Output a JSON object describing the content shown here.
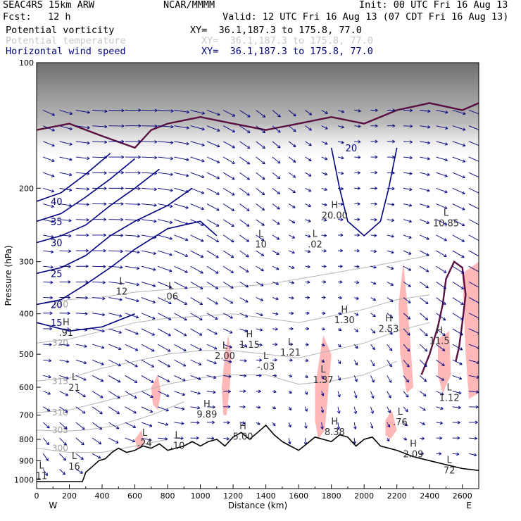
{
  "header": {
    "model": "SEAC4RS 15km ARW",
    "org": "NCAR/MMMM",
    "init": "Init: 00 UTC Fri 16 Aug 13",
    "fcst_label": "Fcst:",
    "fcst_value": "12 h",
    "valid": "Valid: 12 UTC Fri 16 Aug 13 (07 CDT Fri 16 Aug 13)",
    "fields": [
      {
        "name": "Potential vorticity",
        "xy": "XY=  36.1,187.3 to 175.8, 77.0"
      },
      {
        "name": "Potential temperature",
        "xy": "XY=  36.1,187.3 to 175.8, 77.0"
      },
      {
        "name": "Horizontal wind speed",
        "xy": "XY=  36.1,187.3 to 175.8, 77.0"
      }
    ]
  },
  "colors": {
    "wind": "#000080",
    "pv": "#5a1040",
    "theta": "#b4b4b4",
    "shade": "#ffb8b8",
    "terrain": "#000000"
  },
  "chart_data": {
    "type": "cross-section",
    "xlabel": "Distance (km)",
    "ylabel": "Pressure (hPa)",
    "xlim": [
      0,
      2700
    ],
    "ylim": [
      1050,
      100
    ],
    "y_scale": "log-pressure",
    "x_ticks": [
      "0",
      "200",
      "400",
      "600",
      "800",
      "1000",
      "1200",
      "1400",
      "1600",
      "1800",
      "2000",
      "2200",
      "2400",
      "2600"
    ],
    "y_ticks": [
      "100",
      "200",
      "300",
      "400",
      "500",
      "600",
      "700",
      "800",
      "900",
      "1000"
    ],
    "x_end_labels": {
      "left": "W",
      "right": "E"
    },
    "terrain": [
      [
        0,
        1010
      ],
      [
        100,
        1010
      ],
      [
        200,
        1010
      ],
      [
        280,
        1010
      ],
      [
        300,
        960
      ],
      [
        340,
        930
      ],
      [
        380,
        900
      ],
      [
        420,
        890
      ],
      [
        460,
        860
      ],
      [
        500,
        840
      ],
      [
        550,
        860
      ],
      [
        600,
        850
      ],
      [
        650,
        830
      ],
      [
        700,
        840
      ],
      [
        750,
        820
      ],
      [
        800,
        850
      ],
      [
        850,
        840
      ],
      [
        900,
        830
      ],
      [
        950,
        810
      ],
      [
        1000,
        830
      ],
      [
        1050,
        810
      ],
      [
        1100,
        800
      ],
      [
        1150,
        830
      ],
      [
        1200,
        790
      ],
      [
        1250,
        770
      ],
      [
        1300,
        800
      ],
      [
        1350,
        770
      ],
      [
        1400,
        740
      ],
      [
        1450,
        780
      ],
      [
        1500,
        810
      ],
      [
        1550,
        830
      ],
      [
        1600,
        850
      ],
      [
        1650,
        820
      ],
      [
        1700,
        790
      ],
      [
        1750,
        800
      ],
      [
        1800,
        810
      ],
      [
        1850,
        780
      ],
      [
        1900,
        790
      ],
      [
        1950,
        830
      ],
      [
        2000,
        800
      ],
      [
        2050,
        790
      ],
      [
        2100,
        830
      ],
      [
        2200,
        850
      ],
      [
        2300,
        880
      ],
      [
        2400,
        900
      ],
      [
        2500,
        920
      ],
      [
        2600,
        940
      ],
      [
        2700,
        950
      ]
    ],
    "theta_contours": [
      {
        "label": "300",
        "pts": [
          [
            0,
            840
          ],
          [
            200,
            860
          ],
          [
            400,
            860
          ],
          [
            600,
            830
          ],
          [
            800,
            800
          ]
        ]
      },
      {
        "label": "305",
        "pts": [
          [
            0,
            760
          ],
          [
            150,
            765
          ],
          [
            300,
            760
          ],
          [
            500,
            740
          ],
          [
            700,
            700
          ],
          [
            900,
            650
          ]
        ]
      },
      {
        "label": "310",
        "pts": [
          [
            0,
            690
          ],
          [
            200,
            680
          ],
          [
            400,
            650
          ],
          [
            600,
            620
          ],
          [
            800,
            590
          ],
          [
            1000,
            570
          ],
          [
            1200,
            560
          ],
          [
            1400,
            560
          ],
          [
            1600,
            590
          ],
          [
            1800,
            580
          ],
          [
            2000,
            560
          ],
          [
            2200,
            520
          ]
        ]
      },
      {
        "label": "315",
        "pts": [
          [
            0,
            580
          ],
          [
            200,
            570
          ],
          [
            400,
            540
          ],
          [
            600,
            520
          ],
          [
            800,
            500
          ],
          [
            1000,
            490
          ],
          [
            1200,
            490
          ],
          [
            1400,
            500
          ],
          [
            1600,
            510
          ],
          [
            1800,
            490
          ],
          [
            2000,
            470
          ],
          [
            2200,
            440
          ],
          [
            2400,
            420
          ]
        ]
      },
      {
        "label": "320",
        "pts": [
          [
            0,
            470
          ],
          [
            200,
            460
          ],
          [
            400,
            440
          ],
          [
            600,
            420
          ],
          [
            800,
            410
          ],
          [
            1000,
            405
          ],
          [
            1200,
            400
          ],
          [
            1400,
            410
          ],
          [
            1600,
            420
          ],
          [
            1800,
            405
          ],
          [
            2000,
            390
          ],
          [
            2200,
            370
          ],
          [
            2400,
            360
          ]
        ]
      },
      {
        "label": "330",
        "pts": [
          [
            0,
            380
          ],
          [
            200,
            370
          ],
          [
            400,
            365
          ],
          [
            600,
            355
          ],
          [
            800,
            350
          ],
          [
            1000,
            345
          ],
          [
            1200,
            345
          ],
          [
            1400,
            340
          ],
          [
            1600,
            330
          ],
          [
            1800,
            320
          ],
          [
            2000,
            310
          ],
          [
            2200,
            300
          ],
          [
            2400,
            290
          ]
        ]
      }
    ],
    "wind_speed_contours": [
      {
        "label": "15",
        "pts": [
          [
            0,
            420
          ],
          [
            200,
            440
          ],
          [
            400,
            430
          ],
          [
            600,
            400
          ]
        ]
      },
      {
        "label": "20",
        "pts": [
          [
            0,
            380
          ],
          [
            150,
            370
          ],
          [
            300,
            340
          ],
          [
            450,
            310
          ],
          [
            600,
            280
          ],
          [
            800,
            250
          ],
          [
            1000,
            240
          ],
          [
            1100,
            260
          ]
        ]
      },
      {
        "label": "25",
        "pts": [
          [
            0,
            320
          ],
          [
            150,
            310
          ],
          [
            300,
            290
          ],
          [
            450,
            260
          ],
          [
            600,
            240
          ],
          [
            800,
            220
          ],
          [
            950,
            200
          ]
        ]
      },
      {
        "label": "30",
        "pts": [
          [
            0,
            270
          ],
          [
            150,
            260
          ],
          [
            300,
            245
          ],
          [
            450,
            220
          ],
          [
            600,
            200
          ],
          [
            750,
            180
          ]
        ]
      },
      {
        "label": "35",
        "pts": [
          [
            0,
            240
          ],
          [
            150,
            230
          ],
          [
            300,
            210
          ],
          [
            450,
            190
          ],
          [
            600,
            170
          ]
        ]
      },
      {
        "label": "40",
        "pts": [
          [
            0,
            215
          ],
          [
            150,
            205
          ],
          [
            300,
            185
          ],
          [
            450,
            165
          ]
        ]
      },
      {
        "label": "20",
        "pts": [
          [
            1800,
            160
          ],
          [
            1850,
            200
          ],
          [
            1900,
            240
          ],
          [
            2000,
            260
          ],
          [
            2100,
            240
          ],
          [
            2150,
            200
          ],
          [
            2200,
            160
          ]
        ]
      }
    ],
    "pv_contours": [
      {
        "label": "",
        "pts": [
          [
            0,
            145
          ],
          [
            200,
            140
          ],
          [
            400,
            150
          ],
          [
            600,
            160
          ],
          [
            700,
            145
          ],
          [
            800,
            140
          ],
          [
            1000,
            135
          ],
          [
            1200,
            140
          ],
          [
            1400,
            145
          ],
          [
            1600,
            140
          ],
          [
            1800,
            135
          ],
          [
            2000,
            140
          ],
          [
            2200,
            130
          ],
          [
            2400,
            125
          ],
          [
            2600,
            130
          ],
          [
            2700,
            125
          ]
        ]
      },
      {
        "label": "",
        "pts": [
          [
            2350,
            560
          ],
          [
            2400,
            500
          ],
          [
            2450,
            430
          ],
          [
            2480,
            380
          ],
          [
            2500,
            330
          ],
          [
            2550,
            300
          ],
          [
            2600,
            310
          ],
          [
            2620,
            360
          ],
          [
            2600,
            420
          ],
          [
            2580,
            480
          ],
          [
            2560,
            520
          ]
        ]
      }
    ],
    "shaded_regions": [
      {
        "level": "pv",
        "pts": [
          [
            1130,
            600
          ],
          [
            1150,
            500
          ],
          [
            1170,
            450
          ],
          [
            1190,
            500
          ],
          [
            1180,
            600
          ],
          [
            1160,
            700
          ],
          [
            1140,
            700
          ]
        ]
      },
      {
        "level": "pv",
        "pts": [
          [
            1700,
            600
          ],
          [
            1750,
            450
          ],
          [
            1800,
            500
          ],
          [
            1780,
            620
          ],
          [
            1760,
            760
          ],
          [
            1720,
            800
          ],
          [
            1700,
            720
          ]
        ]
      },
      {
        "level": "pv",
        "pts": [
          [
            2240,
            300
          ],
          [
            2280,
            450
          ],
          [
            2300,
            600
          ],
          [
            2260,
            620
          ],
          [
            2220,
            500
          ],
          [
            2210,
            380
          ]
        ]
      },
      {
        "level": "pv",
        "pts": [
          [
            2600,
            320
          ],
          [
            2700,
            300
          ],
          [
            2700,
            620
          ],
          [
            2640,
            640
          ],
          [
            2620,
            500
          ]
        ]
      },
      {
        "level": "pv",
        "pts": [
          [
            700,
            600
          ],
          [
            740,
            560
          ],
          [
            760,
            620
          ],
          [
            740,
            680
          ],
          [
            710,
            660
          ]
        ]
      },
      {
        "level": "pv",
        "pts": [
          [
            2130,
            720
          ],
          [
            2170,
            680
          ],
          [
            2200,
            760
          ],
          [
            2160,
            800
          ],
          [
            2130,
            780
          ]
        ]
      },
      {
        "level": "pv",
        "pts": [
          [
            2450,
            460
          ],
          [
            2520,
            440
          ],
          [
            2530,
            560
          ],
          [
            2480,
            620
          ],
          [
            2450,
            560
          ]
        ]
      },
      {
        "level": "pv",
        "pts": [
          [
            600,
            800
          ],
          [
            640,
            760
          ],
          [
            660,
            820
          ],
          [
            620,
            860
          ]
        ]
      }
    ],
    "extrema": [
      {
        "type": "L",
        "value": "11",
        "x": 30,
        "p": 970
      },
      {
        "type": "L",
        "value": "16",
        "x": 230,
        "p": 920
      },
      {
        "type": "H",
        "value": ".91",
        "x": 180,
        "p": 440
      },
      {
        "type": "L",
        "value": "21",
        "x": 230,
        "p": 595
      },
      {
        "type": "L",
        "value": "12",
        "x": 520,
        "p": 350
      },
      {
        "type": "L",
        "value": ".24",
        "x": 660,
        "p": 810
      },
      {
        "type": "L",
        "value": ".10",
        "x": 860,
        "p": 820
      },
      {
        "type": "H",
        "value": "9.89",
        "x": 1040,
        "p": 690
      },
      {
        "type": "L",
        "value": "2.00",
        "x": 1150,
        "p": 500
      },
      {
        "type": "H",
        "value": "1.15",
        "x": 1300,
        "p": 470
      },
      {
        "type": "L",
        "value": "1.21",
        "x": 1550,
        "p": 490
      },
      {
        "type": "L",
        "value": "-.03",
        "x": 1400,
        "p": 530
      },
      {
        "type": "L",
        "value": "1.37",
        "x": 1750,
        "p": 570
      },
      {
        "type": "H",
        "value": "1.30",
        "x": 1880,
        "p": 410
      },
      {
        "type": "H",
        "value": "2.53",
        "x": 2150,
        "p": 430
      },
      {
        "type": "H",
        "value": "5.00",
        "x": 1260,
        "p": 780
      },
      {
        "type": "H",
        "value": "8.38",
        "x": 1820,
        "p": 760
      },
      {
        "type": "L",
        "value": ".76",
        "x": 2220,
        "p": 720
      },
      {
        "type": "H",
        "value": "2.09",
        "x": 2300,
        "p": 860
      },
      {
        "type": "L",
        "value": "10",
        "x": 1370,
        "p": 270
      },
      {
        "type": "L",
        "value": ".02",
        "x": 1700,
        "p": 270
      },
      {
        "type": "H",
        "value": "20.00",
        "x": 1820,
        "p": 230
      },
      {
        "type": "L",
        "value": ".06",
        "x": 820,
        "p": 360
      },
      {
        "type": "L",
        "value": "10.85",
        "x": 2500,
        "p": 240
      },
      {
        "type": "H",
        "value": "11.5",
        "x": 2460,
        "p": 460
      },
      {
        "type": "L",
        "value": "1.12",
        "x": 2520,
        "p": 630
      },
      {
        "type": "L",
        "value": "72",
        "x": 2520,
        "p": 940
      }
    ]
  }
}
